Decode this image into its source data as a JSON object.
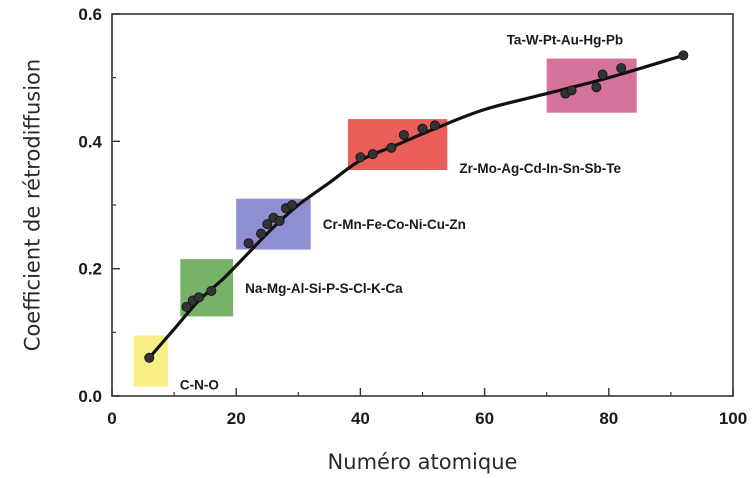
{
  "chart_data": {
    "type": "line",
    "xlabel": "Numéro atomique",
    "ylabel": "Coefficient de rétrodiffusion",
    "xlim": [
      0,
      100
    ],
    "ylim": [
      0,
      0.6
    ],
    "xticks": [
      {
        "value": 0,
        "label": "0"
      },
      {
        "value": 20,
        "label": "20"
      },
      {
        "value": 40,
        "label": "40"
      },
      {
        "value": 60,
        "label": "60"
      },
      {
        "value": 80,
        "label": "80"
      },
      {
        "value": 100,
        "label": "100"
      }
    ],
    "yticks": [
      {
        "value": 0,
        "label": "0.0"
      },
      {
        "value": 0.2,
        "label": "0.2"
      },
      {
        "value": 0.4,
        "label": "0.4"
      },
      {
        "value": 0.6,
        "label": "0.6"
      }
    ],
    "grid": false,
    "series": [
      {
        "line_color": "#111111",
        "curve": [
          {
            "x": 6,
            "y": 0.06
          },
          {
            "x": 10,
            "y": 0.105
          },
          {
            "x": 14,
            "y": 0.15
          },
          {
            "x": 18,
            "y": 0.185
          },
          {
            "x": 22,
            "y": 0.225
          },
          {
            "x": 26,
            "y": 0.265
          },
          {
            "x": 30,
            "y": 0.3
          },
          {
            "x": 35,
            "y": 0.335
          },
          {
            "x": 40,
            "y": 0.37
          },
          {
            "x": 46,
            "y": 0.395
          },
          {
            "x": 52,
            "y": 0.42
          },
          {
            "x": 60,
            "y": 0.45
          },
          {
            "x": 70,
            "y": 0.475
          },
          {
            "x": 80,
            "y": 0.5
          },
          {
            "x": 92,
            "y": 0.535
          }
        ],
        "points": [
          {
            "x": 6,
            "y": 0.06
          },
          {
            "x": 12,
            "y": 0.14
          },
          {
            "x": 13,
            "y": 0.15
          },
          {
            "x": 14,
            "y": 0.155
          },
          {
            "x": 16,
            "y": 0.165
          },
          {
            "x": 22,
            "y": 0.24
          },
          {
            "x": 24,
            "y": 0.255
          },
          {
            "x": 25,
            "y": 0.27
          },
          {
            "x": 26,
            "y": 0.28
          },
          {
            "x": 27,
            "y": 0.275
          },
          {
            "x": 28,
            "y": 0.295
          },
          {
            "x": 29,
            "y": 0.3
          },
          {
            "x": 40,
            "y": 0.375
          },
          {
            "x": 42,
            "y": 0.38
          },
          {
            "x": 45,
            "y": 0.39
          },
          {
            "x": 47,
            "y": 0.41
          },
          {
            "x": 50,
            "y": 0.42
          },
          {
            "x": 52,
            "y": 0.425
          },
          {
            "x": 73,
            "y": 0.475
          },
          {
            "x": 74,
            "y": 0.48
          },
          {
            "x": 78,
            "y": 0.485
          },
          {
            "x": 79,
            "y": 0.505
          },
          {
            "x": 82,
            "y": 0.515
          },
          {
            "x": 92,
            "y": 0.535
          }
        ]
      }
    ],
    "groups": [
      {
        "label": "C-N-O",
        "x_range": [
          3.5,
          9
        ],
        "y_range": [
          0.015,
          0.095
        ],
        "color": "#f7ef7a",
        "label_side": "right-bottom"
      },
      {
        "label": "Na-Mg-Al-Si-P-S-Cl-K-Ca",
        "x_range": [
          11,
          19.5
        ],
        "y_range": [
          0.125,
          0.215
        ],
        "color": "#6aaa5a",
        "label_side": "right"
      },
      {
        "label": "Cr-Mn-Fe-Co-Ni-Cu-Zn",
        "x_range": [
          20,
          32
        ],
        "y_range": [
          0.23,
          0.31
        ],
        "color": "#8587cf",
        "label_side": "right"
      },
      {
        "label": "Zr-Mo-Ag-Cd-In-Sn-Sb-Te",
        "x_range": [
          38,
          54
        ],
        "y_range": [
          0.355,
          0.435
        ],
        "color": "#e8504b",
        "label_side": "right-bottom"
      },
      {
        "label": "Ta-W-Pt-Au-Hg-Pb",
        "x_range": [
          70,
          84.5
        ],
        "y_range": [
          0.445,
          0.53
        ],
        "color": "#d26795",
        "label_side": "top"
      }
    ]
  }
}
